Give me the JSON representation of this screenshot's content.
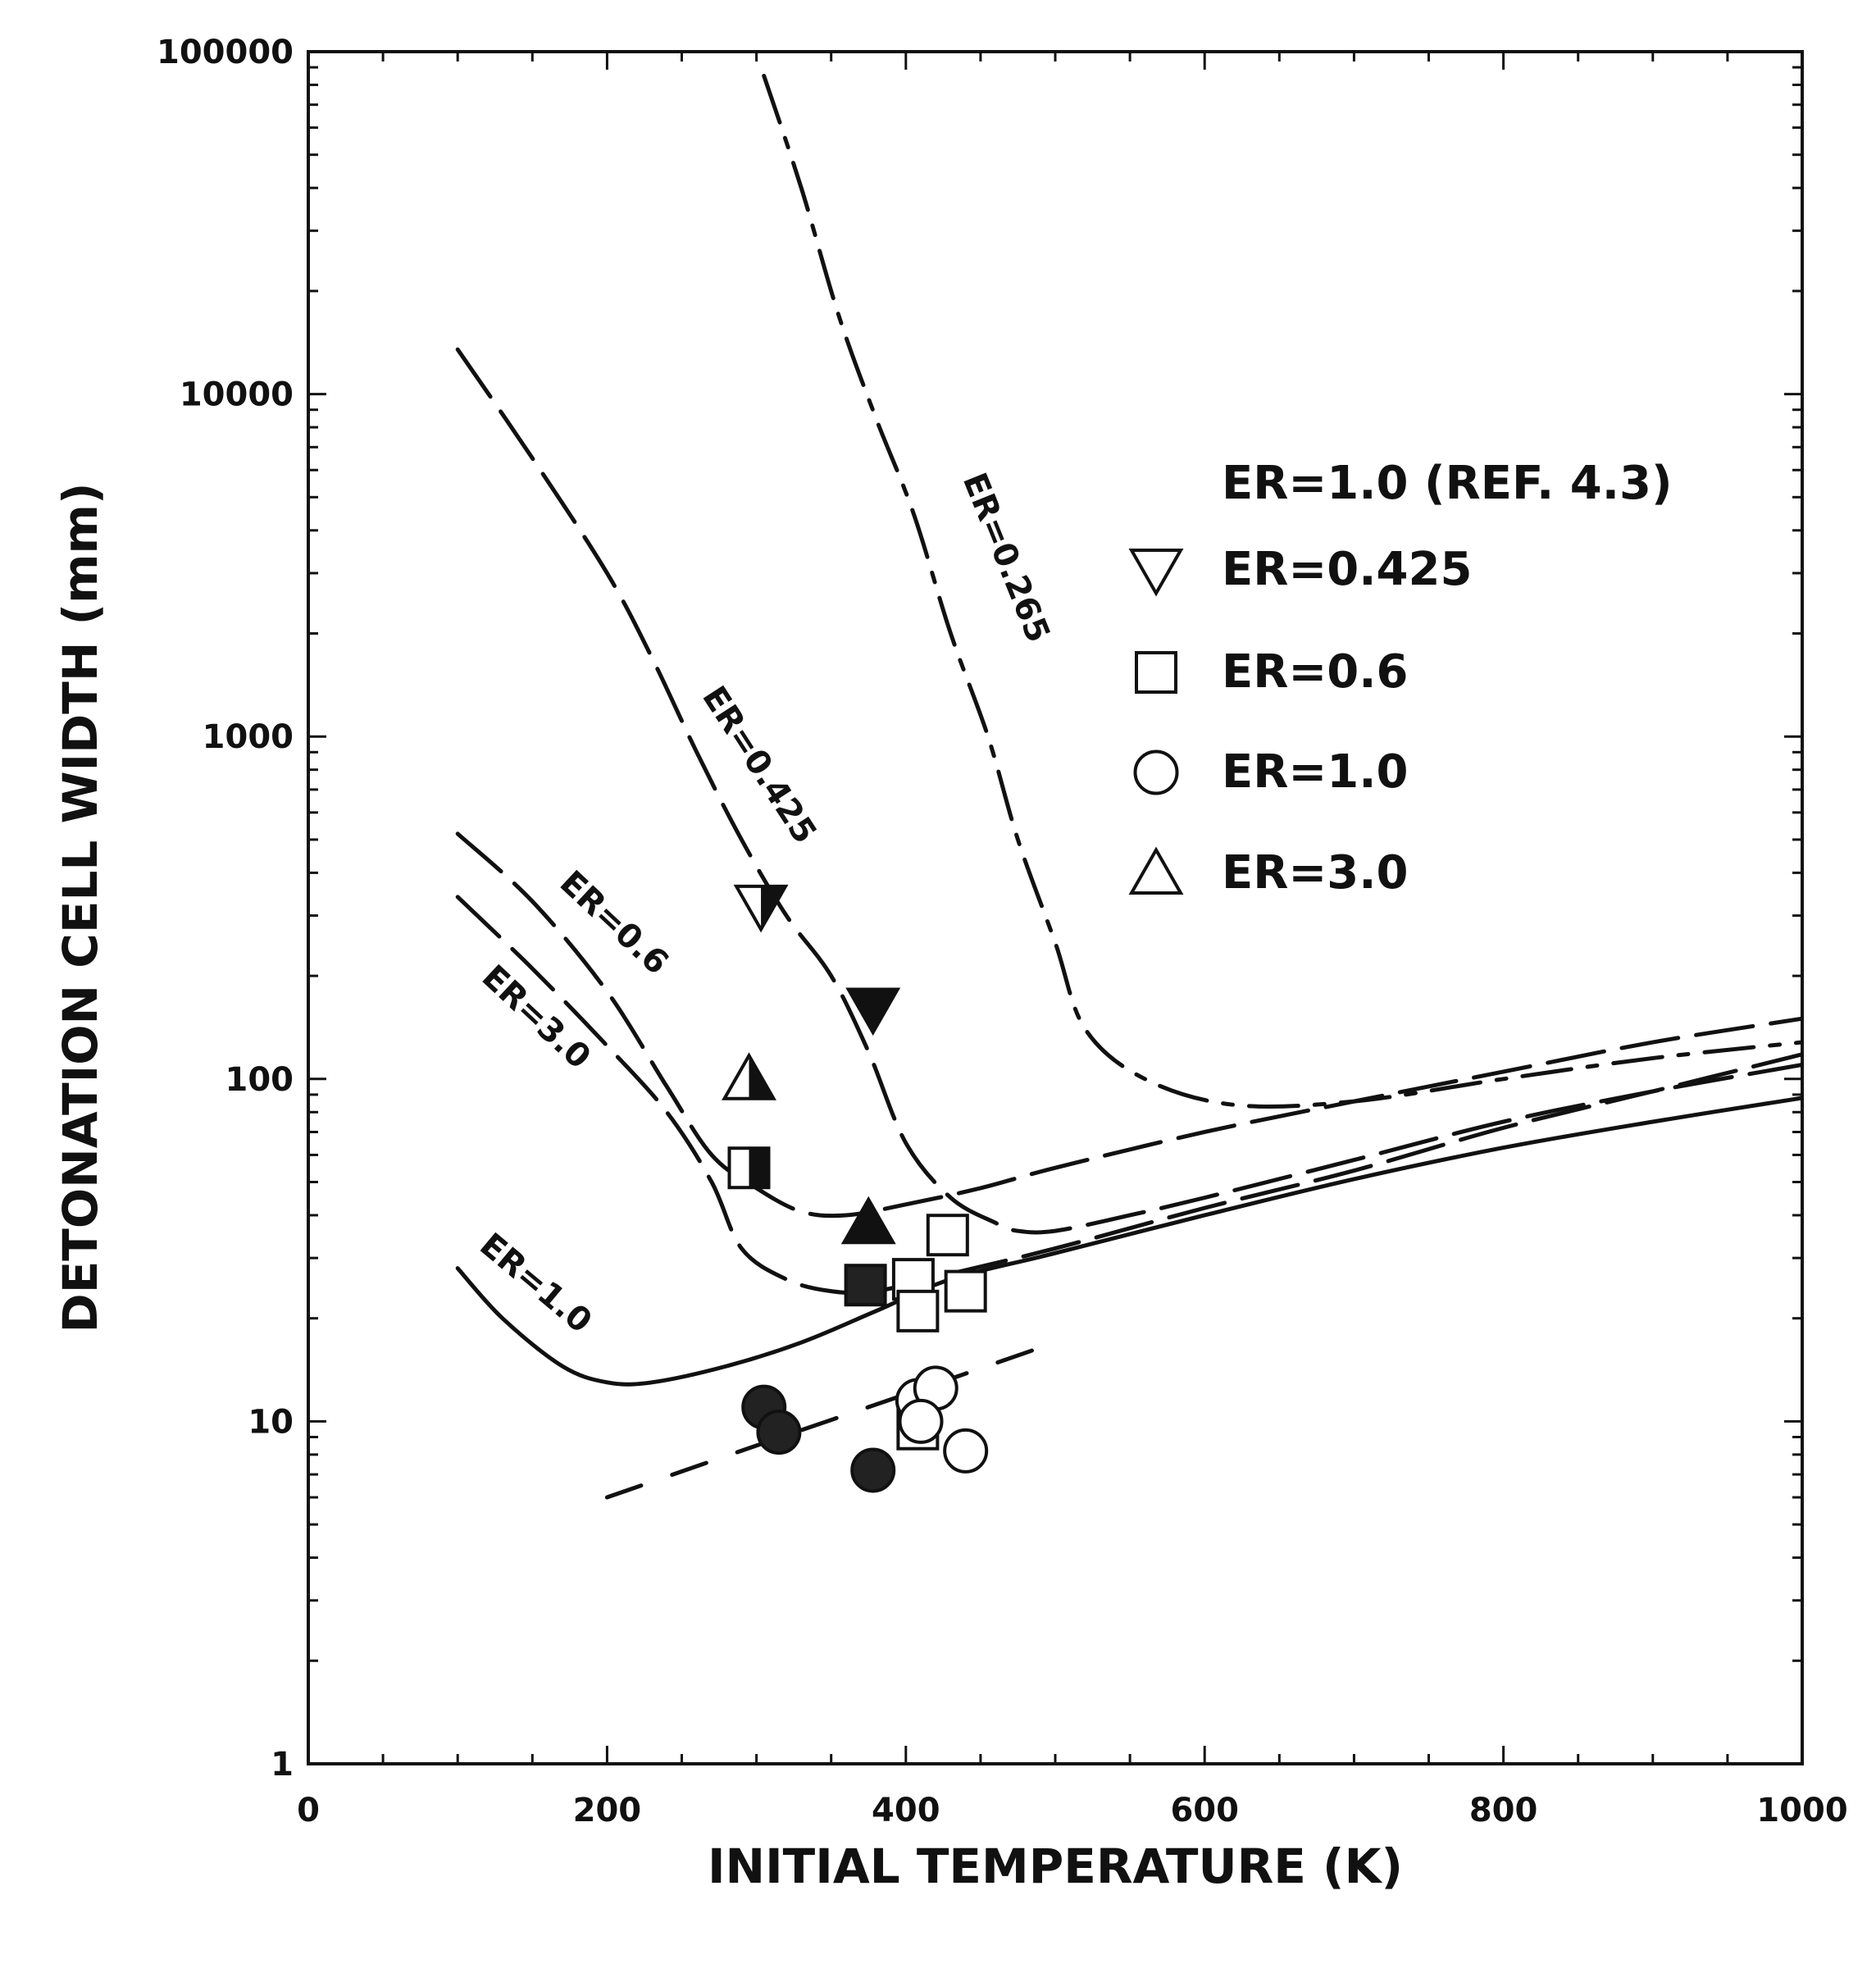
{
  "chart_data": {
    "type": "scatter",
    "xlabel": "INITIAL TEMPERATURE (K)",
    "ylabel": "DETONATION CELL WIDTH (mm)",
    "xlim": [
      0,
      1000
    ],
    "ylim": [
      1,
      100000
    ],
    "yscale": "log",
    "grid": false,
    "legend_position": "right",
    "x_ticks": [
      {
        "v": 0,
        "label": "0"
      },
      {
        "v": 200,
        "label": "200"
      },
      {
        "v": 400,
        "label": "400"
      },
      {
        "v": 600,
        "label": "600"
      },
      {
        "v": 800,
        "label": "800"
      },
      {
        "v": 1000,
        "label": "1000"
      }
    ],
    "y_ticks": [
      {
        "v": 1,
        "label": "1"
      },
      {
        "v": 10,
        "label": "10"
      },
      {
        "v": 100,
        "label": "100"
      },
      {
        "v": 1000,
        "label": "1000"
      },
      {
        "v": 10000,
        "label": "10000"
      },
      {
        "v": 100000,
        "label": "100000"
      }
    ],
    "legend": {
      "header": "ER=1.0 (REF. 4.3)",
      "entries": [
        {
          "symbol": "triangle-down",
          "label": "ER=0.425"
        },
        {
          "symbol": "square",
          "label": "ER=0.6"
        },
        {
          "symbol": "circle",
          "label": "ER=1.0"
        },
        {
          "symbol": "triangle-up",
          "label": "ER=3.0"
        }
      ]
    },
    "curves": [
      {
        "name": "ER=0.265",
        "label": "ER=0.265",
        "style": "dashdot",
        "points": [
          [
            305,
            85000
          ],
          [
            330,
            40000
          ],
          [
            355,
            17000
          ],
          [
            380,
            8500
          ],
          [
            405,
            4500
          ],
          [
            430,
            2000
          ],
          [
            455,
            1000
          ],
          [
            475,
            500
          ],
          [
            500,
            250
          ],
          [
            520,
            140
          ],
          [
            560,
            100
          ],
          [
            620,
            84
          ],
          [
            700,
            86
          ],
          [
            800,
            100
          ],
          [
            900,
            115
          ],
          [
            1000,
            128
          ]
        ]
      },
      {
        "name": "ER=0.425",
        "label": "ER=0.425",
        "style": "long-dash",
        "points": [
          [
            100,
            13500
          ],
          [
            150,
            6500
          ],
          [
            200,
            3000
          ],
          [
            230,
            1700
          ],
          [
            260,
            900
          ],
          [
            290,
            500
          ],
          [
            320,
            300
          ],
          [
            350,
            200
          ],
          [
            375,
            120
          ],
          [
            400,
            65
          ],
          [
            430,
            45
          ],
          [
            460,
            38
          ],
          [
            475,
            36
          ],
          [
            500,
            36
          ],
          [
            550,
            40
          ],
          [
            600,
            45
          ],
          [
            700,
            58
          ],
          [
            800,
            75
          ],
          [
            900,
            92
          ],
          [
            1000,
            110
          ]
        ]
      },
      {
        "name": "ER=0.6",
        "label": "ER=0.6",
        "style": "long-dash",
        "points": [
          [
            100,
            520
          ],
          [
            150,
            330
          ],
          [
            200,
            180
          ],
          [
            240,
            95
          ],
          [
            270,
            60
          ],
          [
            300,
            48
          ],
          [
            330,
            41
          ],
          [
            360,
            40
          ],
          [
            400,
            43
          ],
          [
            450,
            48
          ],
          [
            500,
            55
          ],
          [
            600,
            70
          ],
          [
            700,
            86
          ],
          [
            800,
            105
          ],
          [
            900,
            128
          ],
          [
            1000,
            150
          ]
        ]
      },
      {
        "name": "ER=3.0",
        "label": "ER=3.0",
        "style": "long-dash",
        "points": [
          [
            100,
            340
          ],
          [
            150,
            210
          ],
          [
            200,
            125
          ],
          [
            240,
            80
          ],
          [
            270,
            50
          ],
          [
            290,
            32
          ],
          [
            320,
            26
          ],
          [
            350,
            24
          ],
          [
            380,
            24
          ],
          [
            430,
            27
          ],
          [
            500,
            32
          ],
          [
            600,
            42
          ],
          [
            700,
            54
          ],
          [
            800,
            72
          ],
          [
            900,
            92
          ],
          [
            1000,
            118
          ]
        ]
      },
      {
        "name": "ER=1.0",
        "label": "ER=1.0",
        "style": "solid",
        "points": [
          [
            100,
            28
          ],
          [
            130,
            20
          ],
          [
            170,
            14.5
          ],
          [
            200,
            13
          ],
          [
            230,
            13
          ],
          [
            280,
            14.5
          ],
          [
            330,
            17
          ],
          [
            380,
            21
          ],
          [
            430,
            26
          ],
          [
            500,
            31
          ],
          [
            600,
            40
          ],
          [
            700,
            51
          ],
          [
            800,
            63
          ],
          [
            900,
            75
          ],
          [
            1000,
            88
          ]
        ]
      },
      {
        "name": "ER=1.0 (REF. 4.3)",
        "style": "dashed",
        "points": [
          [
            200,
            6
          ],
          [
            300,
            8.5
          ],
          [
            400,
            12
          ],
          [
            500,
            17
          ]
        ]
      }
    ],
    "series": [
      {
        "name": "ER=0.425",
        "symbol": "triangle-down",
        "points": [
          {
            "x": 303,
            "y": 320,
            "fill": "half"
          },
          {
            "x": 378,
            "y": 160,
            "fill": "filled"
          }
        ]
      },
      {
        "name": "ER=0.6",
        "symbol": "square",
        "points": [
          {
            "x": 295,
            "y": 55,
            "fill": "half"
          },
          {
            "x": 373,
            "y": 25,
            "fill": "filled"
          },
          {
            "x": 405,
            "y": 26,
            "fill": "open"
          },
          {
            "x": 428,
            "y": 35,
            "fill": "open"
          },
          {
            "x": 440,
            "y": 24,
            "fill": "open"
          },
          {
            "x": 408,
            "y": 21,
            "fill": "open"
          },
          {
            "x": 408,
            "y": 9.5,
            "fill": "open"
          }
        ]
      },
      {
        "name": "ER=1.0",
        "symbol": "circle",
        "points": [
          {
            "x": 305,
            "y": 11,
            "fill": "filled"
          },
          {
            "x": 315,
            "y": 9.3,
            "fill": "filled"
          },
          {
            "x": 378,
            "y": 7.2,
            "fill": "filled"
          },
          {
            "x": 408,
            "y": 11.5,
            "fill": "open"
          },
          {
            "x": 420,
            "y": 12.5,
            "fill": "open"
          },
          {
            "x": 410,
            "y": 10,
            "fill": "open"
          },
          {
            "x": 440,
            "y": 8.2,
            "fill": "open"
          }
        ]
      },
      {
        "name": "ER=3.0",
        "symbol": "triangle-up",
        "points": [
          {
            "x": 295,
            "y": 100,
            "fill": "half"
          },
          {
            "x": 375,
            "y": 38,
            "fill": "filled"
          }
        ]
      }
    ]
  }
}
